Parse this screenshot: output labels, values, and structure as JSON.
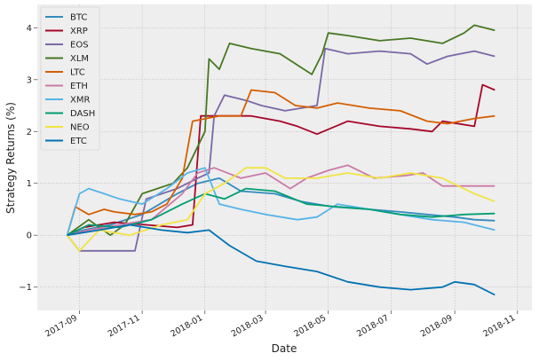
{
  "chart_data": {
    "type": "line",
    "title": "",
    "xlabel": "Date",
    "ylabel": "Strategy Returns (%)",
    "x_ticks": [
      "2017-09",
      "2017-11",
      "2018-01",
      "2018-03",
      "2018-05",
      "2018-07",
      "2018-09",
      "2018-11"
    ],
    "y_ticks": [
      "-1",
      "0",
      "1",
      "2",
      "3",
      "4"
    ],
    "xlim": [
      "2017-07-22",
      "2018-11-15"
    ],
    "ylim": [
      -1.45,
      4.45
    ],
    "grid": true,
    "legend_position": "top-left",
    "series": [
      {
        "name": "BTC",
        "color": "#348ABD",
        "points": [
          [
            "2017-08-20",
            0.0
          ],
          [
            "2017-09-05",
            0.1
          ],
          [
            "2017-10-01",
            0.2
          ],
          [
            "2017-11-01",
            0.4
          ],
          [
            "2017-12-05",
            0.8
          ],
          [
            "2017-12-25",
            1.0
          ],
          [
            "2018-01-15",
            1.1
          ],
          [
            "2018-02-05",
            0.85
          ],
          [
            "2018-03-10",
            0.8
          ],
          [
            "2018-04-05",
            0.65
          ],
          [
            "2018-05-05",
            0.55
          ],
          [
            "2018-06-10",
            0.5
          ],
          [
            "2018-07-10",
            0.45
          ],
          [
            "2018-08-05",
            0.4
          ],
          [
            "2018-09-01",
            0.35
          ],
          [
            "2018-09-20",
            0.3
          ],
          [
            "2018-10-10",
            0.28
          ]
        ]
      },
      {
        "name": "XRP",
        "color": "#A60628",
        "points": [
          [
            "2017-08-20",
            0.0
          ],
          [
            "2017-09-05",
            0.15
          ],
          [
            "2017-10-05",
            0.25
          ],
          [
            "2017-11-05",
            0.2
          ],
          [
            "2017-12-05",
            0.15
          ],
          [
            "2017-12-20",
            0.2
          ],
          [
            "2017-12-28",
            2.3
          ],
          [
            "2018-01-20",
            2.3
          ],
          [
            "2018-02-15",
            2.3
          ],
          [
            "2018-03-15",
            2.2
          ],
          [
            "2018-04-01",
            2.1
          ],
          [
            "2018-04-20",
            1.95
          ],
          [
            "2018-05-20",
            2.2
          ],
          [
            "2018-06-20",
            2.1
          ],
          [
            "2018-07-20",
            2.05
          ],
          [
            "2018-08-10",
            2.0
          ],
          [
            "2018-08-20",
            2.2
          ],
          [
            "2018-09-20",
            2.1
          ],
          [
            "2018-09-28",
            2.9
          ],
          [
            "2018-10-10",
            2.8
          ]
        ]
      },
      {
        "name": "EOS",
        "color": "#7A68A6",
        "points": [
          [
            "2017-08-20",
            0.0
          ],
          [
            "2017-09-01",
            -0.3
          ],
          [
            "2017-10-01",
            -0.3
          ],
          [
            "2017-10-25",
            -0.3
          ],
          [
            "2017-11-05",
            0.7
          ],
          [
            "2017-12-05",
            0.9
          ],
          [
            "2017-12-25",
            1.1
          ],
          [
            "2018-01-05",
            1.2
          ],
          [
            "2018-01-10",
            2.3
          ],
          [
            "2018-01-20",
            2.7
          ],
          [
            "2018-02-10",
            2.6
          ],
          [
            "2018-02-25",
            2.5
          ],
          [
            "2018-03-20",
            2.4
          ],
          [
            "2018-04-20",
            2.5
          ],
          [
            "2018-04-28",
            3.6
          ],
          [
            "2018-05-20",
            3.5
          ],
          [
            "2018-06-20",
            3.55
          ],
          [
            "2018-07-20",
            3.5
          ],
          [
            "2018-08-05",
            3.3
          ],
          [
            "2018-08-25",
            3.45
          ],
          [
            "2018-09-20",
            3.55
          ],
          [
            "2018-10-10",
            3.45
          ]
        ]
      },
      {
        "name": "XLM",
        "color": "#467821",
        "points": [
          [
            "2017-08-20",
            0.0
          ],
          [
            "2017-09-10",
            0.3
          ],
          [
            "2017-10-01",
            0.0
          ],
          [
            "2017-10-15",
            0.2
          ],
          [
            "2017-11-01",
            0.8
          ],
          [
            "2017-12-01",
            1.0
          ],
          [
            "2017-12-15",
            1.3
          ],
          [
            "2018-01-01",
            2.0
          ],
          [
            "2018-01-05",
            3.4
          ],
          [
            "2018-01-15",
            3.2
          ],
          [
            "2018-01-25",
            3.7
          ],
          [
            "2018-02-15",
            3.6
          ],
          [
            "2018-03-15",
            3.5
          ],
          [
            "2018-04-15",
            3.1
          ],
          [
            "2018-04-25",
            3.5
          ],
          [
            "2018-05-01",
            3.9
          ],
          [
            "2018-05-20",
            3.85
          ],
          [
            "2018-06-20",
            3.75
          ],
          [
            "2018-07-20",
            3.8
          ],
          [
            "2018-08-20",
            3.7
          ],
          [
            "2018-09-10",
            3.9
          ],
          [
            "2018-09-20",
            4.05
          ],
          [
            "2018-10-10",
            3.95
          ]
        ]
      },
      {
        "name": "LTC",
        "color": "#D55E00",
        "points": [
          [
            "2017-08-20",
            0.0
          ],
          [
            "2017-08-28",
            0.55
          ],
          [
            "2017-09-10",
            0.4
          ],
          [
            "2017-09-25",
            0.5
          ],
          [
            "2017-10-05",
            0.45
          ],
          [
            "2017-10-25",
            0.4
          ],
          [
            "2017-11-10",
            0.45
          ],
          [
            "2017-11-25",
            0.6
          ],
          [
            "2017-12-10",
            1.1
          ],
          [
            "2017-12-20",
            2.2
          ],
          [
            "2018-01-15",
            2.3
          ],
          [
            "2018-02-05",
            2.3
          ],
          [
            "2018-02-15",
            2.8
          ],
          [
            "2018-03-10",
            2.75
          ],
          [
            "2018-03-30",
            2.5
          ],
          [
            "2018-04-20",
            2.45
          ],
          [
            "2018-05-10",
            2.55
          ],
          [
            "2018-06-10",
            2.45
          ],
          [
            "2018-07-10",
            2.4
          ],
          [
            "2018-08-05",
            2.2
          ],
          [
            "2018-08-25",
            2.15
          ],
          [
            "2018-09-20",
            2.25
          ],
          [
            "2018-10-10",
            2.3
          ]
        ]
      },
      {
        "name": "ETH",
        "color": "#CC79A7",
        "points": [
          [
            "2017-08-20",
            0.0
          ],
          [
            "2017-09-10",
            0.1
          ],
          [
            "2017-10-10",
            0.2
          ],
          [
            "2017-11-10",
            0.3
          ],
          [
            "2017-12-10",
            0.8
          ],
          [
            "2017-12-25",
            1.2
          ],
          [
            "2018-01-10",
            1.3
          ],
          [
            "2018-02-05",
            1.1
          ],
          [
            "2018-03-01",
            1.2
          ],
          [
            "2018-03-25",
            0.9
          ],
          [
            "2018-04-10",
            1.1
          ],
          [
            "2018-05-01",
            1.25
          ],
          [
            "2018-05-20",
            1.35
          ],
          [
            "2018-06-15",
            1.1
          ],
          [
            "2018-07-15",
            1.15
          ],
          [
            "2018-08-01",
            1.2
          ],
          [
            "2018-08-20",
            0.95
          ],
          [
            "2018-09-20",
            0.95
          ],
          [
            "2018-10-10",
            0.95
          ]
        ]
      },
      {
        "name": "XMR",
        "color": "#56B4E9",
        "points": [
          [
            "2017-08-20",
            0.0
          ],
          [
            "2017-09-01",
            0.8
          ],
          [
            "2017-09-10",
            0.9
          ],
          [
            "2017-09-25",
            0.8
          ],
          [
            "2017-10-10",
            0.7
          ],
          [
            "2017-11-01",
            0.6
          ],
          [
            "2017-11-25",
            0.9
          ],
          [
            "2017-12-15",
            1.2
          ],
          [
            "2018-01-01",
            1.3
          ],
          [
            "2018-01-15",
            0.6
          ],
          [
            "2018-02-05",
            0.5
          ],
          [
            "2018-03-01",
            0.4
          ],
          [
            "2018-04-01",
            0.3
          ],
          [
            "2018-04-20",
            0.35
          ],
          [
            "2018-05-10",
            0.6
          ],
          [
            "2018-06-10",
            0.5
          ],
          [
            "2018-07-10",
            0.4
          ],
          [
            "2018-08-10",
            0.3
          ],
          [
            "2018-09-10",
            0.25
          ],
          [
            "2018-10-10",
            0.1
          ]
        ]
      },
      {
        "name": "DASH",
        "color": "#009E73",
        "points": [
          [
            "2017-08-20",
            0.0
          ],
          [
            "2017-09-10",
            0.2
          ],
          [
            "2017-10-10",
            0.15
          ],
          [
            "2017-11-10",
            0.3
          ],
          [
            "2017-12-10",
            0.6
          ],
          [
            "2018-01-01",
            0.8
          ],
          [
            "2018-01-20",
            0.7
          ],
          [
            "2018-02-10",
            0.9
          ],
          [
            "2018-03-10",
            0.85
          ],
          [
            "2018-04-10",
            0.6
          ],
          [
            "2018-05-10",
            0.55
          ],
          [
            "2018-06-10",
            0.5
          ],
          [
            "2018-07-10",
            0.4
          ],
          [
            "2018-08-10",
            0.35
          ],
          [
            "2018-09-10",
            0.4
          ],
          [
            "2018-10-10",
            0.42
          ]
        ]
      },
      {
        "name": "NEO",
        "color": "#F0E442",
        "points": [
          [
            "2017-08-20",
            0.0
          ],
          [
            "2017-09-01",
            -0.3
          ],
          [
            "2017-09-20",
            0.1
          ],
          [
            "2017-10-20",
            0.0
          ],
          [
            "2017-11-20",
            0.2
          ],
          [
            "2017-12-15",
            0.3
          ],
          [
            "2018-01-01",
            0.8
          ],
          [
            "2018-01-20",
            1.0
          ],
          [
            "2018-02-10",
            1.3
          ],
          [
            "2018-03-01",
            1.3
          ],
          [
            "2018-03-20",
            1.1
          ],
          [
            "2018-04-20",
            1.1
          ],
          [
            "2018-05-20",
            1.2
          ],
          [
            "2018-06-20",
            1.1
          ],
          [
            "2018-07-20",
            1.2
          ],
          [
            "2018-08-20",
            1.1
          ],
          [
            "2018-09-20",
            0.8
          ],
          [
            "2018-10-10",
            0.65
          ]
        ]
      },
      {
        "name": "ETC",
        "color": "#0072B2",
        "points": [
          [
            "2017-08-20",
            0.0
          ],
          [
            "2017-09-20",
            0.1
          ],
          [
            "2017-10-20",
            0.2
          ],
          [
            "2017-11-20",
            0.1
          ],
          [
            "2017-12-15",
            0.05
          ],
          [
            "2018-01-05",
            0.1
          ],
          [
            "2018-01-25",
            -0.2
          ],
          [
            "2018-02-20",
            -0.5
          ],
          [
            "2018-03-20",
            -0.6
          ],
          [
            "2018-04-20",
            -0.7
          ],
          [
            "2018-05-20",
            -0.9
          ],
          [
            "2018-06-20",
            -1.0
          ],
          [
            "2018-07-20",
            -1.05
          ],
          [
            "2018-08-20",
            -1.0
          ],
          [
            "2018-09-01",
            -0.9
          ],
          [
            "2018-09-20",
            -0.95
          ],
          [
            "2018-10-10",
            -1.15
          ]
        ]
      }
    ]
  }
}
